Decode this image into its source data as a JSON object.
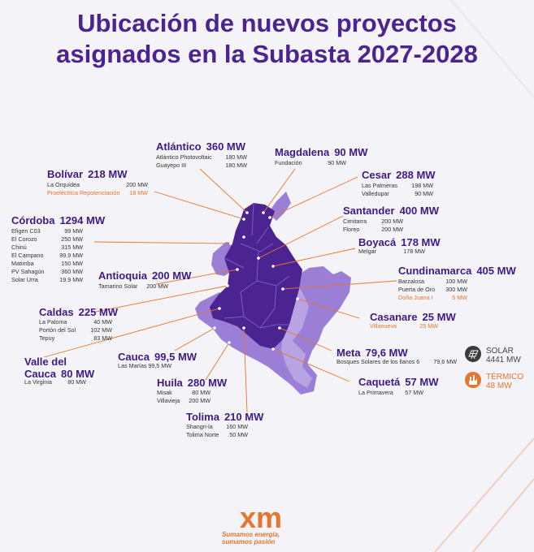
{
  "title_line1": "Ubicación de nuevos proyectos",
  "title_line2": "asignados en la Subasta 2027-2028",
  "colors": {
    "purple_dark": "#4b2491",
    "purple_light": "#9b7fd6",
    "orange": "#e5752f"
  },
  "departments": {
    "atlantico": {
      "name": "Atlántico",
      "mw": "360 MW",
      "projects": [
        {
          "name": "Atlántico Photovoltaic",
          "value": "180 MW"
        },
        {
          "name": "Guayepo III",
          "value": "180 MW"
        }
      ]
    },
    "magdalena": {
      "name": "Magdalena",
      "mw": "90 MW",
      "projects": [
        {
          "name": "Fundación",
          "value": "90 MW"
        }
      ]
    },
    "bolivar": {
      "name": "Bolívar",
      "mw": "218 MW",
      "projects": [
        {
          "name": "La Orquídea",
          "value": "200 MW"
        },
        {
          "name": "Proeléctrica Repotenciación",
          "value": "18 MW"
        }
      ]
    },
    "cesar": {
      "name": "Cesar",
      "mw": "288 MW",
      "projects": [
        {
          "name": "Las Palmeras",
          "value": "198 MW"
        },
        {
          "name": "Valledupar",
          "value": "90 MW"
        }
      ]
    },
    "cordoba": {
      "name": "Córdoba",
      "mw": "1294 MW",
      "projects": [
        {
          "name": "Efigen C03",
          "value": "99 MW"
        },
        {
          "name": "El Corozo",
          "value": "250 MW"
        },
        {
          "name": "Chinú",
          "value": "315 MW"
        },
        {
          "name": "El Campano",
          "value": "99.9 MW"
        },
        {
          "name": "Matimba",
          "value": "150 MW"
        },
        {
          "name": "PV Sahagún",
          "value": "360 MW"
        },
        {
          "name": "Solar Urra",
          "value": "19.9 MW"
        }
      ]
    },
    "santander": {
      "name": "Santander",
      "mw": "400 MW",
      "projects": [
        {
          "name": "Cimitarra",
          "value": "200 MW"
        },
        {
          "name": "Floreo",
          "value": "200 MW"
        }
      ]
    },
    "boyaca": {
      "name": "Boyacá",
      "mw": "178 MW",
      "projects": [
        {
          "name": "Melgar",
          "value": "178 MW"
        }
      ]
    },
    "antioquia": {
      "name": "Antioquia",
      "mw": "200 MW",
      "projects": [
        {
          "name": "Tamarino Solar",
          "value": "200 MW"
        }
      ]
    },
    "cundinamarca": {
      "name": "Cundinamarca",
      "mw": "405 MW",
      "projects": [
        {
          "name": "Barzalosa",
          "value": "100 MW"
        },
        {
          "name": "Puerta de Oro",
          "value": "300 MW"
        },
        {
          "name": "Doña Juana I",
          "value": "5 MW"
        }
      ]
    },
    "caldas": {
      "name": "Caldas",
      "mw": "225 MW",
      "projects": [
        {
          "name": "La Paloma",
          "value": "40 MW"
        },
        {
          "name": "Portón del Sol",
          "value": "102 MW"
        },
        {
          "name": "Tepuy",
          "value": "83 MW"
        }
      ]
    },
    "casanare": {
      "name": "Casanare",
      "mw": "25 MW",
      "projects": [
        {
          "name": "Villanueva",
          "value": "25 MW"
        }
      ]
    },
    "cauca": {
      "name": "Cauca",
      "mw": "99,5 MW",
      "projects": [
        {
          "name": "Las Marías",
          "value": "99,5 MW"
        }
      ]
    },
    "meta": {
      "name": "Meta",
      "mw": "79,6 MW",
      "projects": [
        {
          "name": "Bosques Solares de los llanos 6",
          "value": "79,6 MW"
        }
      ]
    },
    "valle": {
      "name_line1": "Valle del",
      "name_line2": "Cauca",
      "mw": "80 MW",
      "projects": [
        {
          "name": "La Virginia",
          "value": "80 MW"
        }
      ]
    },
    "huila": {
      "name": "Huila",
      "mw": "280 MW",
      "projects": [
        {
          "name": "Misak",
          "value": "80 MW"
        },
        {
          "name": "Villavieja",
          "value": "200 MW"
        }
      ]
    },
    "caqueta": {
      "name": "Caquetá",
      "mw": "57 MW",
      "projects": [
        {
          "name": "La Primavera",
          "value": "57 MW"
        }
      ]
    },
    "tolima": {
      "name": "Tolima",
      "mw": "210 MW",
      "projects": [
        {
          "name": "Shangri-la",
          "value": "160 MW"
        },
        {
          "name": "Tolima Norte",
          "value": "50 MW"
        }
      ]
    }
  },
  "legend": {
    "solar": {
      "label": "SOLAR",
      "value": "4441 MW",
      "icon": "solar-panel-icon"
    },
    "termico": {
      "label": "TÉRMICO",
      "value": "48 MW",
      "icon": "thermal-plant-icon"
    }
  },
  "footer": {
    "logo": "xm",
    "tagline_line1": "Sumamos energía,",
    "tagline_line2": "sumamos pasión"
  }
}
